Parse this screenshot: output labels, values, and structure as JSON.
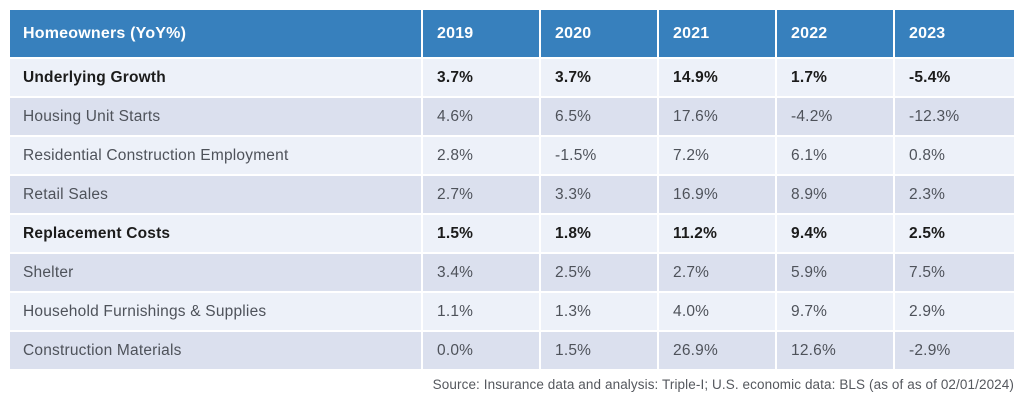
{
  "chart_data": {
    "type": "table",
    "title": "Homeowners (YoY%)",
    "columns": [
      "2019",
      "2020",
      "2021",
      "2022",
      "2023"
    ],
    "rows": [
      {
        "label": "Underlying Growth",
        "bold": true,
        "values": [
          "3.7%",
          "3.7%",
          "14.9%",
          "1.7%",
          "-5.4%"
        ]
      },
      {
        "label": "Housing Unit Starts",
        "bold": false,
        "values": [
          "4.6%",
          "6.5%",
          "17.6%",
          "-4.2%",
          "-12.3%"
        ]
      },
      {
        "label": "Residential Construction Employment",
        "bold": false,
        "values": [
          "2.8%",
          "-1.5%",
          "7.2%",
          "6.1%",
          "0.8%"
        ]
      },
      {
        "label": "Retail Sales",
        "bold": false,
        "values": [
          "2.7%",
          "3.3%",
          "16.9%",
          "8.9%",
          "2.3%"
        ]
      },
      {
        "label": "Replacement Costs",
        "bold": true,
        "values": [
          "1.5%",
          "1.8%",
          "11.2%",
          "9.4%",
          "2.5%"
        ]
      },
      {
        "label": "Shelter",
        "bold": false,
        "values": [
          "3.4%",
          "2.5%",
          "2.7%",
          "5.9%",
          "7.5%"
        ]
      },
      {
        "label": "Household Furnishings & Supplies",
        "bold": false,
        "values": [
          "1.1%",
          "1.3%",
          "4.0%",
          "9.7%",
          "2.9%"
        ]
      },
      {
        "label": "Construction Materials",
        "bold": false,
        "values": [
          "0.0%",
          "1.5%",
          "26.9%",
          "12.6%",
          "-2.9%"
        ]
      }
    ],
    "source": "Source: Insurance data and analysis: Triple-I; U.S. economic data: BLS  (as of as of 02/01/2024)"
  },
  "colors": {
    "header_bg": "#3780bd",
    "header_text": "#ffffff",
    "row_light": "#edf1f9",
    "row_dark": "#dbe0ee",
    "body_text": "#4e525a",
    "bold_text": "#1b1b1b",
    "footer_text": "#55585e"
  }
}
